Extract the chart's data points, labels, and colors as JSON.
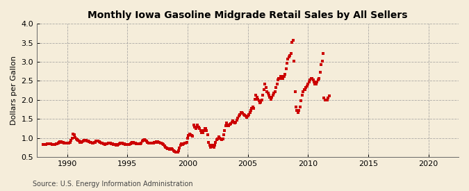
{
  "title": "Monthly Iowa Gasoline Midgrade Retail Sales by All Sellers",
  "ylabel": "Dollars per Gallon",
  "source": "Source: U.S. Energy Information Administration",
  "ylim": [
    0.5,
    4.0
  ],
  "xlim": [
    1987.5,
    2022.5
  ],
  "yticks": [
    0.5,
    1.0,
    1.5,
    2.0,
    2.5,
    3.0,
    3.5,
    4.0
  ],
  "xticks": [
    1990,
    1995,
    2000,
    2005,
    2010,
    2015,
    2020
  ],
  "dot_color": "#cc0000",
  "background_color": "#f5edda",
  "grid_color": "#999999",
  "data": [
    [
      1988.0,
      0.83
    ],
    [
      1988.08,
      0.82
    ],
    [
      1988.17,
      0.82
    ],
    [
      1988.25,
      0.83
    ],
    [
      1988.33,
      0.84
    ],
    [
      1988.42,
      0.85
    ],
    [
      1988.5,
      0.85
    ],
    [
      1988.58,
      0.85
    ],
    [
      1988.67,
      0.84
    ],
    [
      1988.75,
      0.83
    ],
    [
      1988.83,
      0.83
    ],
    [
      1988.92,
      0.82
    ],
    [
      1989.0,
      0.83
    ],
    [
      1989.08,
      0.84
    ],
    [
      1989.17,
      0.85
    ],
    [
      1989.25,
      0.87
    ],
    [
      1989.33,
      0.88
    ],
    [
      1989.42,
      0.9
    ],
    [
      1989.5,
      0.9
    ],
    [
      1989.58,
      0.89
    ],
    [
      1989.67,
      0.88
    ],
    [
      1989.75,
      0.87
    ],
    [
      1989.83,
      0.86
    ],
    [
      1989.92,
      0.86
    ],
    [
      1990.0,
      0.87
    ],
    [
      1990.08,
      0.87
    ],
    [
      1990.17,
      0.87
    ],
    [
      1990.25,
      0.89
    ],
    [
      1990.33,
      0.94
    ],
    [
      1990.42,
      1.0
    ],
    [
      1990.5,
      1.1
    ],
    [
      1990.58,
      1.08
    ],
    [
      1990.67,
      1.01
    ],
    [
      1990.75,
      0.97
    ],
    [
      1990.83,
      0.95
    ],
    [
      1990.92,
      0.93
    ],
    [
      1991.0,
      0.91
    ],
    [
      1991.08,
      0.89
    ],
    [
      1991.17,
      0.89
    ],
    [
      1991.25,
      0.9
    ],
    [
      1991.33,
      0.91
    ],
    [
      1991.42,
      0.93
    ],
    [
      1991.5,
      0.94
    ],
    [
      1991.58,
      0.93
    ],
    [
      1991.67,
      0.92
    ],
    [
      1991.75,
      0.91
    ],
    [
      1991.83,
      0.9
    ],
    [
      1991.92,
      0.89
    ],
    [
      1992.0,
      0.88
    ],
    [
      1992.08,
      0.87
    ],
    [
      1992.17,
      0.87
    ],
    [
      1992.25,
      0.88
    ],
    [
      1992.33,
      0.89
    ],
    [
      1992.42,
      0.91
    ],
    [
      1992.5,
      0.92
    ],
    [
      1992.58,
      0.91
    ],
    [
      1992.67,
      0.9
    ],
    [
      1992.75,
      0.89
    ],
    [
      1992.83,
      0.87
    ],
    [
      1992.92,
      0.86
    ],
    [
      1993.0,
      0.85
    ],
    [
      1993.08,
      0.84
    ],
    [
      1993.17,
      0.83
    ],
    [
      1993.25,
      0.84
    ],
    [
      1993.33,
      0.85
    ],
    [
      1993.42,
      0.86
    ],
    [
      1993.5,
      0.87
    ],
    [
      1993.58,
      0.86
    ],
    [
      1993.67,
      0.85
    ],
    [
      1993.75,
      0.84
    ],
    [
      1993.83,
      0.83
    ],
    [
      1993.92,
      0.82
    ],
    [
      1994.0,
      0.82
    ],
    [
      1994.08,
      0.81
    ],
    [
      1994.17,
      0.81
    ],
    [
      1994.25,
      0.82
    ],
    [
      1994.33,
      0.84
    ],
    [
      1994.42,
      0.86
    ],
    [
      1994.5,
      0.87
    ],
    [
      1994.58,
      0.86
    ],
    [
      1994.67,
      0.85
    ],
    [
      1994.75,
      0.84
    ],
    [
      1994.83,
      0.83
    ],
    [
      1994.92,
      0.82
    ],
    [
      1995.0,
      0.82
    ],
    [
      1995.08,
      0.82
    ],
    [
      1995.17,
      0.83
    ],
    [
      1995.25,
      0.85
    ],
    [
      1995.33,
      0.87
    ],
    [
      1995.42,
      0.89
    ],
    [
      1995.5,
      0.88
    ],
    [
      1995.58,
      0.87
    ],
    [
      1995.67,
      0.86
    ],
    [
      1995.75,
      0.85
    ],
    [
      1995.83,
      0.84
    ],
    [
      1995.92,
      0.84
    ],
    [
      1996.0,
      0.84
    ],
    [
      1996.08,
      0.85
    ],
    [
      1996.17,
      0.87
    ],
    [
      1996.25,
      0.91
    ],
    [
      1996.33,
      0.94
    ],
    [
      1996.42,
      0.95
    ],
    [
      1996.5,
      0.93
    ],
    [
      1996.58,
      0.91
    ],
    [
      1996.67,
      0.89
    ],
    [
      1996.75,
      0.87
    ],
    [
      1996.83,
      0.86
    ],
    [
      1996.92,
      0.86
    ],
    [
      1997.0,
      0.86
    ],
    [
      1997.08,
      0.86
    ],
    [
      1997.17,
      0.87
    ],
    [
      1997.25,
      0.88
    ],
    [
      1997.33,
      0.89
    ],
    [
      1997.42,
      0.9
    ],
    [
      1997.5,
      0.9
    ],
    [
      1997.58,
      0.89
    ],
    [
      1997.67,
      0.88
    ],
    [
      1997.75,
      0.87
    ],
    [
      1997.83,
      0.86
    ],
    [
      1997.92,
      0.85
    ],
    [
      1998.0,
      0.82
    ],
    [
      1998.08,
      0.79
    ],
    [
      1998.17,
      0.76
    ],
    [
      1998.25,
      0.74
    ],
    [
      1998.33,
      0.72
    ],
    [
      1998.42,
      0.71
    ],
    [
      1998.5,
      0.7
    ],
    [
      1998.58,
      0.71
    ],
    [
      1998.67,
      0.71
    ],
    [
      1998.75,
      0.7
    ],
    [
      1998.83,
      0.67
    ],
    [
      1998.92,
      0.64
    ],
    [
      1999.0,
      0.62
    ],
    [
      1999.08,
      0.62
    ],
    [
      1999.17,
      0.63
    ],
    [
      1999.25,
      0.67
    ],
    [
      1999.33,
      0.74
    ],
    [
      1999.42,
      0.81
    ],
    [
      1999.5,
      0.84
    ],
    [
      1999.58,
      0.83
    ],
    [
      1999.67,
      0.84
    ],
    [
      1999.75,
      0.86
    ],
    [
      1999.83,
      0.87
    ],
    [
      1999.92,
      0.89
    ],
    [
      2000.0,
      1.0
    ],
    [
      2000.08,
      1.07
    ],
    [
      2000.17,
      1.11
    ],
    [
      2000.25,
      1.09
    ],
    [
      2000.33,
      1.06
    ],
    [
      2000.42,
      1.04
    ],
    [
      2000.5,
      1.34
    ],
    [
      2000.58,
      1.29
    ],
    [
      2000.67,
      1.24
    ],
    [
      2000.75,
      1.29
    ],
    [
      2000.83,
      1.34
    ],
    [
      2000.92,
      1.29
    ],
    [
      2001.0,
      1.24
    ],
    [
      2001.08,
      1.19
    ],
    [
      2001.17,
      1.14
    ],
    [
      2001.25,
      1.14
    ],
    [
      2001.33,
      1.19
    ],
    [
      2001.42,
      1.24
    ],
    [
      2001.5,
      1.24
    ],
    [
      2001.58,
      1.19
    ],
    [
      2001.67,
      1.09
    ],
    [
      2001.75,
      0.88
    ],
    [
      2001.83,
      0.8
    ],
    [
      2001.92,
      0.75
    ],
    [
      2002.0,
      0.8
    ],
    [
      2002.08,
      0.77
    ],
    [
      2002.17,
      0.75
    ],
    [
      2002.25,
      0.8
    ],
    [
      2002.33,
      0.88
    ],
    [
      2002.42,
      0.95
    ],
    [
      2002.5,
      0.98
    ],
    [
      2002.58,
      1.02
    ],
    [
      2002.67,
      1.0
    ],
    [
      2002.75,
      0.97
    ],
    [
      2002.83,
      0.95
    ],
    [
      2002.92,
      0.98
    ],
    [
      2003.0,
      1.08
    ],
    [
      2003.08,
      1.2
    ],
    [
      2003.17,
      1.32
    ],
    [
      2003.25,
      1.4
    ],
    [
      2003.33,
      1.34
    ],
    [
      2003.42,
      1.32
    ],
    [
      2003.5,
      1.35
    ],
    [
      2003.58,
      1.38
    ],
    [
      2003.67,
      1.42
    ],
    [
      2003.75,
      1.44
    ],
    [
      2003.83,
      1.42
    ],
    [
      2003.92,
      1.4
    ],
    [
      2004.0,
      1.42
    ],
    [
      2004.08,
      1.47
    ],
    [
      2004.17,
      1.52
    ],
    [
      2004.25,
      1.57
    ],
    [
      2004.33,
      1.62
    ],
    [
      2004.42,
      1.67
    ],
    [
      2004.5,
      1.67
    ],
    [
      2004.58,
      1.64
    ],
    [
      2004.67,
      1.62
    ],
    [
      2004.75,
      1.6
    ],
    [
      2004.83,
      1.57
    ],
    [
      2004.92,
      1.54
    ],
    [
      2005.0,
      1.57
    ],
    [
      2005.08,
      1.62
    ],
    [
      2005.17,
      1.67
    ],
    [
      2005.25,
      1.72
    ],
    [
      2005.33,
      1.77
    ],
    [
      2005.42,
      1.82
    ],
    [
      2005.5,
      1.77
    ],
    [
      2005.58,
      2.02
    ],
    [
      2005.67,
      2.12
    ],
    [
      2005.75,
      2.07
    ],
    [
      2005.83,
      2.02
    ],
    [
      2005.92,
      1.97
    ],
    [
      2006.0,
      1.92
    ],
    [
      2006.08,
      1.94
    ],
    [
      2006.17,
      2.0
    ],
    [
      2006.25,
      2.12
    ],
    [
      2006.33,
      2.27
    ],
    [
      2006.42,
      2.42
    ],
    [
      2006.5,
      2.32
    ],
    [
      2006.58,
      2.22
    ],
    [
      2006.67,
      2.17
    ],
    [
      2006.75,
      2.12
    ],
    [
      2006.83,
      2.07
    ],
    [
      2006.92,
      2.02
    ],
    [
      2007.0,
      2.07
    ],
    [
      2007.08,
      2.12
    ],
    [
      2007.17,
      2.17
    ],
    [
      2007.25,
      2.22
    ],
    [
      2007.33,
      2.32
    ],
    [
      2007.42,
      2.42
    ],
    [
      2007.5,
      2.52
    ],
    [
      2007.58,
      2.57
    ],
    [
      2007.67,
      2.57
    ],
    [
      2007.75,
      2.62
    ],
    [
      2007.83,
      2.62
    ],
    [
      2007.92,
      2.57
    ],
    [
      2008.0,
      2.62
    ],
    [
      2008.08,
      2.67
    ],
    [
      2008.17,
      2.82
    ],
    [
      2008.25,
      2.97
    ],
    [
      2008.33,
      3.07
    ],
    [
      2008.42,
      3.12
    ],
    [
      2008.5,
      3.17
    ],
    [
      2008.58,
      3.22
    ],
    [
      2008.67,
      3.52
    ],
    [
      2008.75,
      3.57
    ],
    [
      2008.83,
      3.02
    ],
    [
      2008.92,
      2.22
    ],
    [
      2009.0,
      1.82
    ],
    [
      2009.08,
      1.72
    ],
    [
      2009.17,
      1.67
    ],
    [
      2009.25,
      1.72
    ],
    [
      2009.33,
      1.82
    ],
    [
      2009.42,
      1.97
    ],
    [
      2009.5,
      2.12
    ],
    [
      2009.58,
      2.22
    ],
    [
      2009.67,
      2.27
    ],
    [
      2009.75,
      2.27
    ],
    [
      2009.83,
      2.32
    ],
    [
      2009.92,
      2.37
    ],
    [
      2010.0,
      2.42
    ],
    [
      2010.08,
      2.47
    ],
    [
      2010.17,
      2.52
    ],
    [
      2010.25,
      2.57
    ],
    [
      2010.33,
      2.57
    ],
    [
      2010.42,
      2.52
    ],
    [
      2010.5,
      2.47
    ],
    [
      2010.58,
      2.42
    ],
    [
      2010.67,
      2.42
    ],
    [
      2010.75,
      2.47
    ],
    [
      2010.83,
      2.52
    ],
    [
      2010.92,
      2.57
    ],
    [
      2011.0,
      2.72
    ],
    [
      2011.08,
      2.92
    ],
    [
      2011.17,
      3.02
    ],
    [
      2011.25,
      3.22
    ],
    [
      2011.33,
      2.05
    ],
    [
      2011.42,
      2.0
    ],
    [
      2011.5,
      2.0
    ],
    [
      2011.58,
      2.0
    ],
    [
      2011.67,
      2.05
    ],
    [
      2011.75,
      2.1
    ]
  ]
}
